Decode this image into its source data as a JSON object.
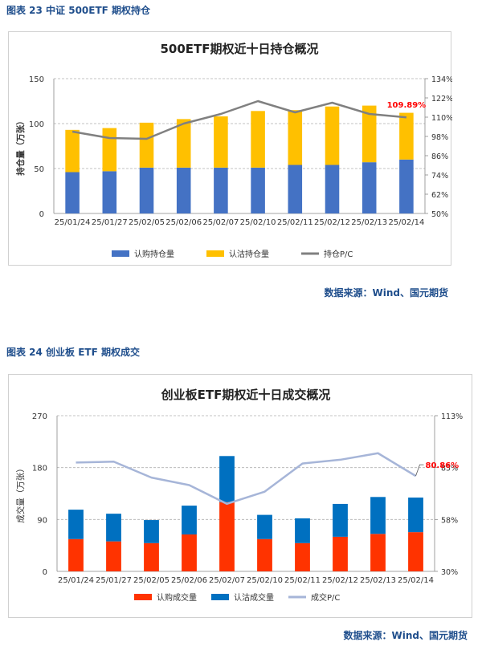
{
  "figures": [
    {
      "caption": "图表 23  中证 500ETF 期权持仓",
      "source": "数据来源：Wind、国元期货"
    },
    {
      "caption": "图表 24  创业板 ETF 期权成交",
      "source": "数据来源：Wind、国元期货"
    }
  ],
  "chart_data": [
    {
      "type": "bar",
      "stacked": true,
      "title": "500ETF期权近十日持仓概况",
      "ylabel": "持仓量（万张）",
      "ylim": [
        0,
        150
      ],
      "yticks": [
        "0",
        "50",
        "100",
        "150"
      ],
      "y2lim": [
        50,
        134
      ],
      "y2ticks": [
        "50%",
        "62%",
        "74%",
        "86%",
        "98%",
        "110%",
        "122%",
        "134%"
      ],
      "categories": [
        "25/01/24",
        "25/01/27",
        "25/02/05",
        "25/02/06",
        "25/02/07",
        "25/02/10",
        "25/02/11",
        "25/02/12",
        "25/02/13",
        "25/02/14"
      ],
      "series": [
        {
          "name": "认购持仓量",
          "kind": "bar",
          "color": "#4472c4",
          "values": [
            46,
            47,
            51,
            51,
            51,
            51,
            54,
            54,
            57,
            60
          ]
        },
        {
          "name": "认沽持仓量",
          "kind": "bar",
          "color": "#ffc000",
          "values": [
            47,
            48,
            50,
            54,
            57,
            63,
            61,
            65,
            63,
            52
          ]
        },
        {
          "name": "持仓P/C",
          "kind": "line",
          "axis": "right",
          "color": "#808080",
          "values": [
            101,
            97,
            96.5,
            106,
            112,
            120,
            113,
            119,
            112,
            109.89
          ]
        }
      ],
      "annotation": {
        "text": "109.89%",
        "color": "#ff0000"
      },
      "grid": true,
      "legend": "bottom"
    },
    {
      "type": "bar",
      "stacked": true,
      "title": "创业板ETF期权近十日成交概况",
      "ylabel": "成交量（万张）",
      "ylim": [
        0,
        270
      ],
      "yticks": [
        "0",
        "90",
        "180",
        "270"
      ],
      "y2lim": [
        30,
        113
      ],
      "y2ticks": [
        "30%",
        "58%",
        "85%",
        "113%"
      ],
      "categories": [
        "25/01/24",
        "25/01/27",
        "25/02/05",
        "25/02/06",
        "25/02/07",
        "25/02/10",
        "25/02/11",
        "25/02/12",
        "25/02/13",
        "25/02/14"
      ],
      "series": [
        {
          "name": "认购成交量",
          "kind": "bar",
          "color": "#ff3300",
          "values": [
            56,
            52,
            49,
            64,
            120,
            56,
            49,
            60,
            65,
            68
          ]
        },
        {
          "name": "认沽成交量",
          "kind": "bar",
          "color": "#0070c0",
          "values": [
            51,
            48,
            40,
            50,
            80,
            42,
            43,
            57,
            64,
            60
          ]
        },
        {
          "name": "成交P/C",
          "kind": "line",
          "axis": "right",
          "color": "#a6b5d8",
          "values": [
            88,
            88.5,
            80,
            76,
            66,
            72.5,
            87.5,
            89.5,
            93,
            80.86
          ]
        }
      ],
      "annotation": {
        "text": "80.86%",
        "color": "#ff0000"
      },
      "grid": true,
      "legend": "bottom"
    }
  ]
}
